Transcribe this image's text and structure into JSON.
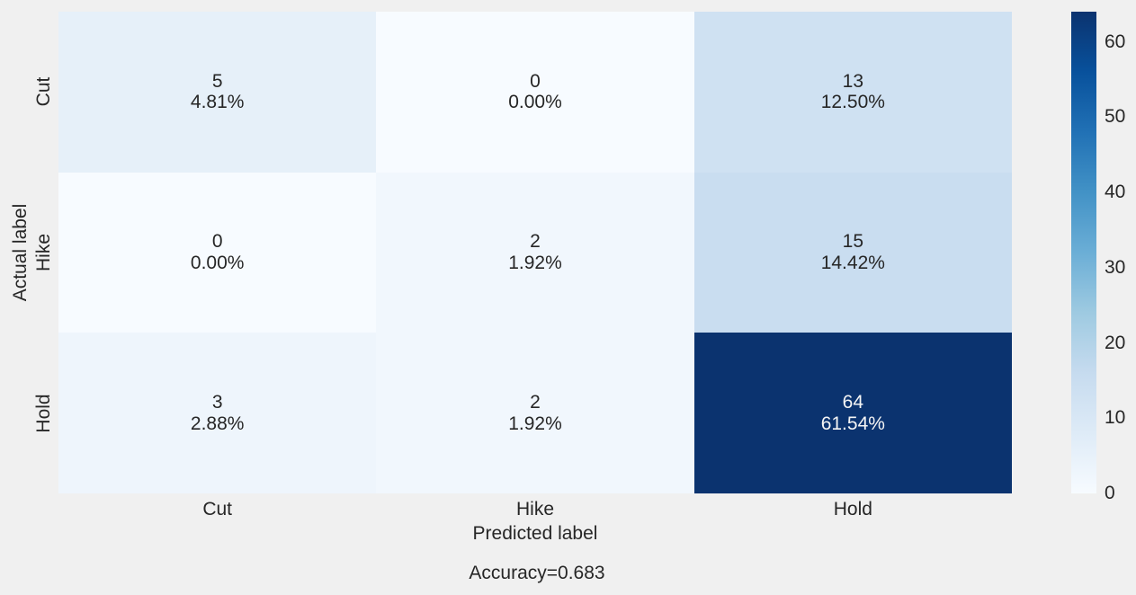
{
  "chart_data": {
    "type": "heatmap",
    "title": "",
    "xlabel": "Predicted label",
    "ylabel": "Actual label",
    "x_categories": [
      "Cut",
      "Hike",
      "Hold"
    ],
    "y_categories": [
      "Cut",
      "Hike",
      "Hold"
    ],
    "counts": [
      [
        5,
        0,
        13
      ],
      [
        0,
        2,
        15
      ],
      [
        3,
        2,
        64
      ]
    ],
    "percent_labels": [
      [
        "4.81%",
        "0.00%",
        "12.50%"
      ],
      [
        "0.00%",
        "1.92%",
        "14.42%"
      ],
      [
        "2.88%",
        "1.92%",
        "61.54%"
      ]
    ],
    "cells": [
      {
        "row": "Cut",
        "col": "Cut",
        "count": "5",
        "percent": "4.81%",
        "bg": "#e6f0f9",
        "fg": "#262626"
      },
      {
        "row": "Cut",
        "col": "Hike",
        "count": "0",
        "percent": "0.00%",
        "bg": "#f7fbff",
        "fg": "#262626"
      },
      {
        "row": "Cut",
        "col": "Hold",
        "count": "13",
        "percent": "12.50%",
        "bg": "#cfe1f2",
        "fg": "#262626"
      },
      {
        "row": "Hike",
        "col": "Cut",
        "count": "0",
        "percent": "0.00%",
        "bg": "#f7fbff",
        "fg": "#262626"
      },
      {
        "row": "Hike",
        "col": "Hike",
        "count": "2",
        "percent": "1.92%",
        "bg": "#f1f7fd",
        "fg": "#262626"
      },
      {
        "row": "Hike",
        "col": "Hold",
        "count": "15",
        "percent": "14.42%",
        "bg": "#c9ddf0",
        "fg": "#262626"
      },
      {
        "row": "Hold",
        "col": "Cut",
        "count": "3",
        "percent": "2.88%",
        "bg": "#eef5fc",
        "fg": "#262626"
      },
      {
        "row": "Hold",
        "col": "Hike",
        "count": "2",
        "percent": "1.92%",
        "bg": "#f1f7fd",
        "fg": "#262626"
      },
      {
        "row": "Hold",
        "col": "Hold",
        "count": "64",
        "percent": "61.54%",
        "bg": "#0b336f",
        "fg": "#f5f5f5"
      }
    ],
    "annotation": "Accuracy=0.683",
    "colorbar": {
      "vmin": 0,
      "vmax": 64,
      "ticks": [
        0,
        10,
        20,
        30,
        40,
        50,
        60
      ],
      "colormap": "Blues",
      "stops": [
        "#f7fbff",
        "#deebf7",
        "#c6dbef",
        "#9ecae1",
        "#6baed6",
        "#4292c6",
        "#2171b5",
        "#08519c",
        "#0b336f"
      ]
    },
    "colors": {
      "background": "#f0f0f0",
      "text": "#262626"
    },
    "legend_position": "right-colorbar",
    "grid": false
  }
}
